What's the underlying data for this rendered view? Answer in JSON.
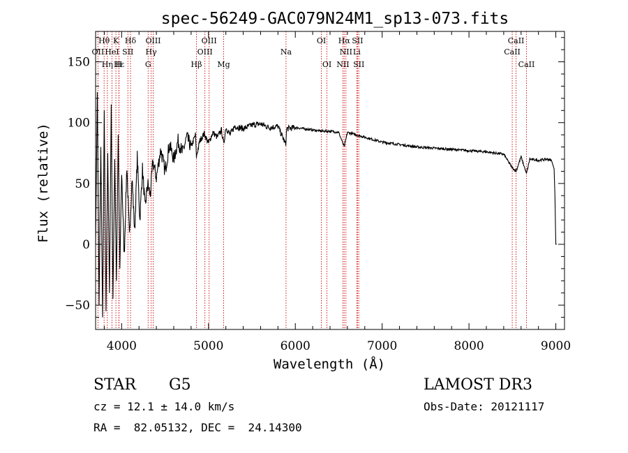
{
  "chart_data": {
    "type": "line",
    "title": "spec-56249-GAC079N24M1_sp13-073.fits",
    "xlabel": "Wavelength (Å)",
    "ylabel": "Flux (relative)",
    "xlim": [
      3700,
      9100
    ],
    "ylim": [
      -70,
      175
    ],
    "x_ticks": [
      4000,
      5000,
      6000,
      7000,
      8000,
      9000
    ],
    "x_tick_labels": [
      "4000",
      "5000",
      "6000",
      "7000",
      "8000",
      "9000"
    ],
    "y_ticks": [
      -50,
      0,
      50,
      100,
      150
    ],
    "y_tick_labels": [
      "−50",
      "0",
      "50",
      "100",
      "150"
    ],
    "grid": false,
    "series": [
      {
        "name": "spectrum",
        "color": "#000000",
        "x": [
          3700,
          3720,
          3740,
          3760,
          3780,
          3800,
          3820,
          3840,
          3860,
          3880,
          3900,
          3920,
          3940,
          3960,
          3980,
          4000,
          4030,
          4060,
          4090,
          4120,
          4150,
          4180,
          4210,
          4240,
          4270,
          4300,
          4330,
          4360,
          4400,
          4450,
          4500,
          4550,
          4600,
          4650,
          4700,
          4750,
          4800,
          4850,
          4861,
          4900,
          4950,
          5000,
          5050,
          5100,
          5150,
          5175,
          5200,
          5250,
          5300,
          5400,
          5500,
          5600,
          5700,
          5800,
          5890,
          5900,
          6000,
          6100,
          6200,
          6300,
          6400,
          6500,
          6563,
          6600,
          6700,
          6800,
          6900,
          7000,
          7200,
          7400,
          7600,
          7800,
          8000,
          8200,
          8400,
          8498,
          8542,
          8600,
          8662,
          8700,
          8800,
          8900,
          8950,
          8980,
          8990,
          9000,
          9010
        ],
        "y": [
          0,
          125,
          -50,
          80,
          -60,
          110,
          -55,
          75,
          -40,
          115,
          -45,
          70,
          -30,
          90,
          -20,
          60,
          -10,
          65,
          5,
          55,
          10,
          72,
          20,
          62,
          30,
          50,
          40,
          68,
          55,
          78,
          60,
          82,
          70,
          85,
          75,
          88,
          80,
          90,
          72,
          85,
          91,
          83,
          92,
          88,
          94,
          82,
          96,
          90,
          97,
          95,
          98,
          99,
          96,
          97,
          82,
          95,
          96,
          95,
          94,
          93,
          93,
          92,
          80,
          92,
          90,
          88,
          86,
          84,
          82,
          80,
          79,
          78,
          77,
          76,
          74,
          63,
          60,
          72,
          58,
          70,
          69,
          70,
          69,
          62,
          40,
          0,
          0
        ]
      }
    ],
    "line_markers": [
      {
        "label": "Hθ",
        "wavelength": 3798,
        "row": 1
      },
      {
        "label": "OII",
        "wavelength": 3727,
        "row": 2
      },
      {
        "label": "Hε",
        "wavelength": 3970,
        "row": 3
      },
      {
        "label": "K",
        "wavelength": 3934,
        "row": 1
      },
      {
        "label": "HeI",
        "wavelength": 3889,
        "row": 2
      },
      {
        "label": "Hη",
        "wavelength": 3835,
        "row": 3
      },
      {
        "label": "SII",
        "wavelength": 4072,
        "row": 2
      },
      {
        "label": "H",
        "wavelength": 3968,
        "row": 3
      },
      {
        "label": "Hδ",
        "wavelength": 4102,
        "row": 1
      },
      {
        "label": "OIII",
        "wavelength": 4363,
        "row": 1
      },
      {
        "label": "Hγ",
        "wavelength": 4340,
        "row": 2
      },
      {
        "label": "G",
        "wavelength": 4305,
        "row": 3
      },
      {
        "label": "OIII",
        "wavelength": 5007,
        "row": 1
      },
      {
        "label": "OIII",
        "wavelength": 4959,
        "row": 2
      },
      {
        "label": "Hβ",
        "wavelength": 4861,
        "row": 3
      },
      {
        "label": "Mg",
        "wavelength": 5175,
        "row": 3
      },
      {
        "label": "Na",
        "wavelength": 5893,
        "row": 2
      },
      {
        "label": "OI",
        "wavelength": 6300,
        "row": 1
      },
      {
        "label": "OI",
        "wavelength": 6364,
        "row": 3
      },
      {
        "label": "Hα",
        "wavelength": 6563,
        "row": 1
      },
      {
        "label": "SII",
        "wavelength": 6716,
        "row": 1
      },
      {
        "label": "NII",
        "wavelength": 6583,
        "row": 2
      },
      {
        "label": "Li",
        "wavelength": 6708,
        "row": 2
      },
      {
        "label": "NII",
        "wavelength": 6548,
        "row": 3
      },
      {
        "label": "SII",
        "wavelength": 6731,
        "row": 3
      },
      {
        "label": "CaII",
        "wavelength": 8542,
        "row": 1
      },
      {
        "label": "CaII",
        "wavelength": 8498,
        "row": 2
      },
      {
        "label": "CaII",
        "wavelength": 8662,
        "row": 3
      }
    ],
    "marker_color": "#cc0000"
  },
  "info": {
    "class": "STAR",
    "subclass": "G5",
    "survey": "LAMOST DR3",
    "cz": "cz = 12.1 ± 14.0 km/s",
    "obs_date": "Obs-Date: 20121117",
    "coords": "RA =  82.05132, DEC =  24.14300"
  }
}
